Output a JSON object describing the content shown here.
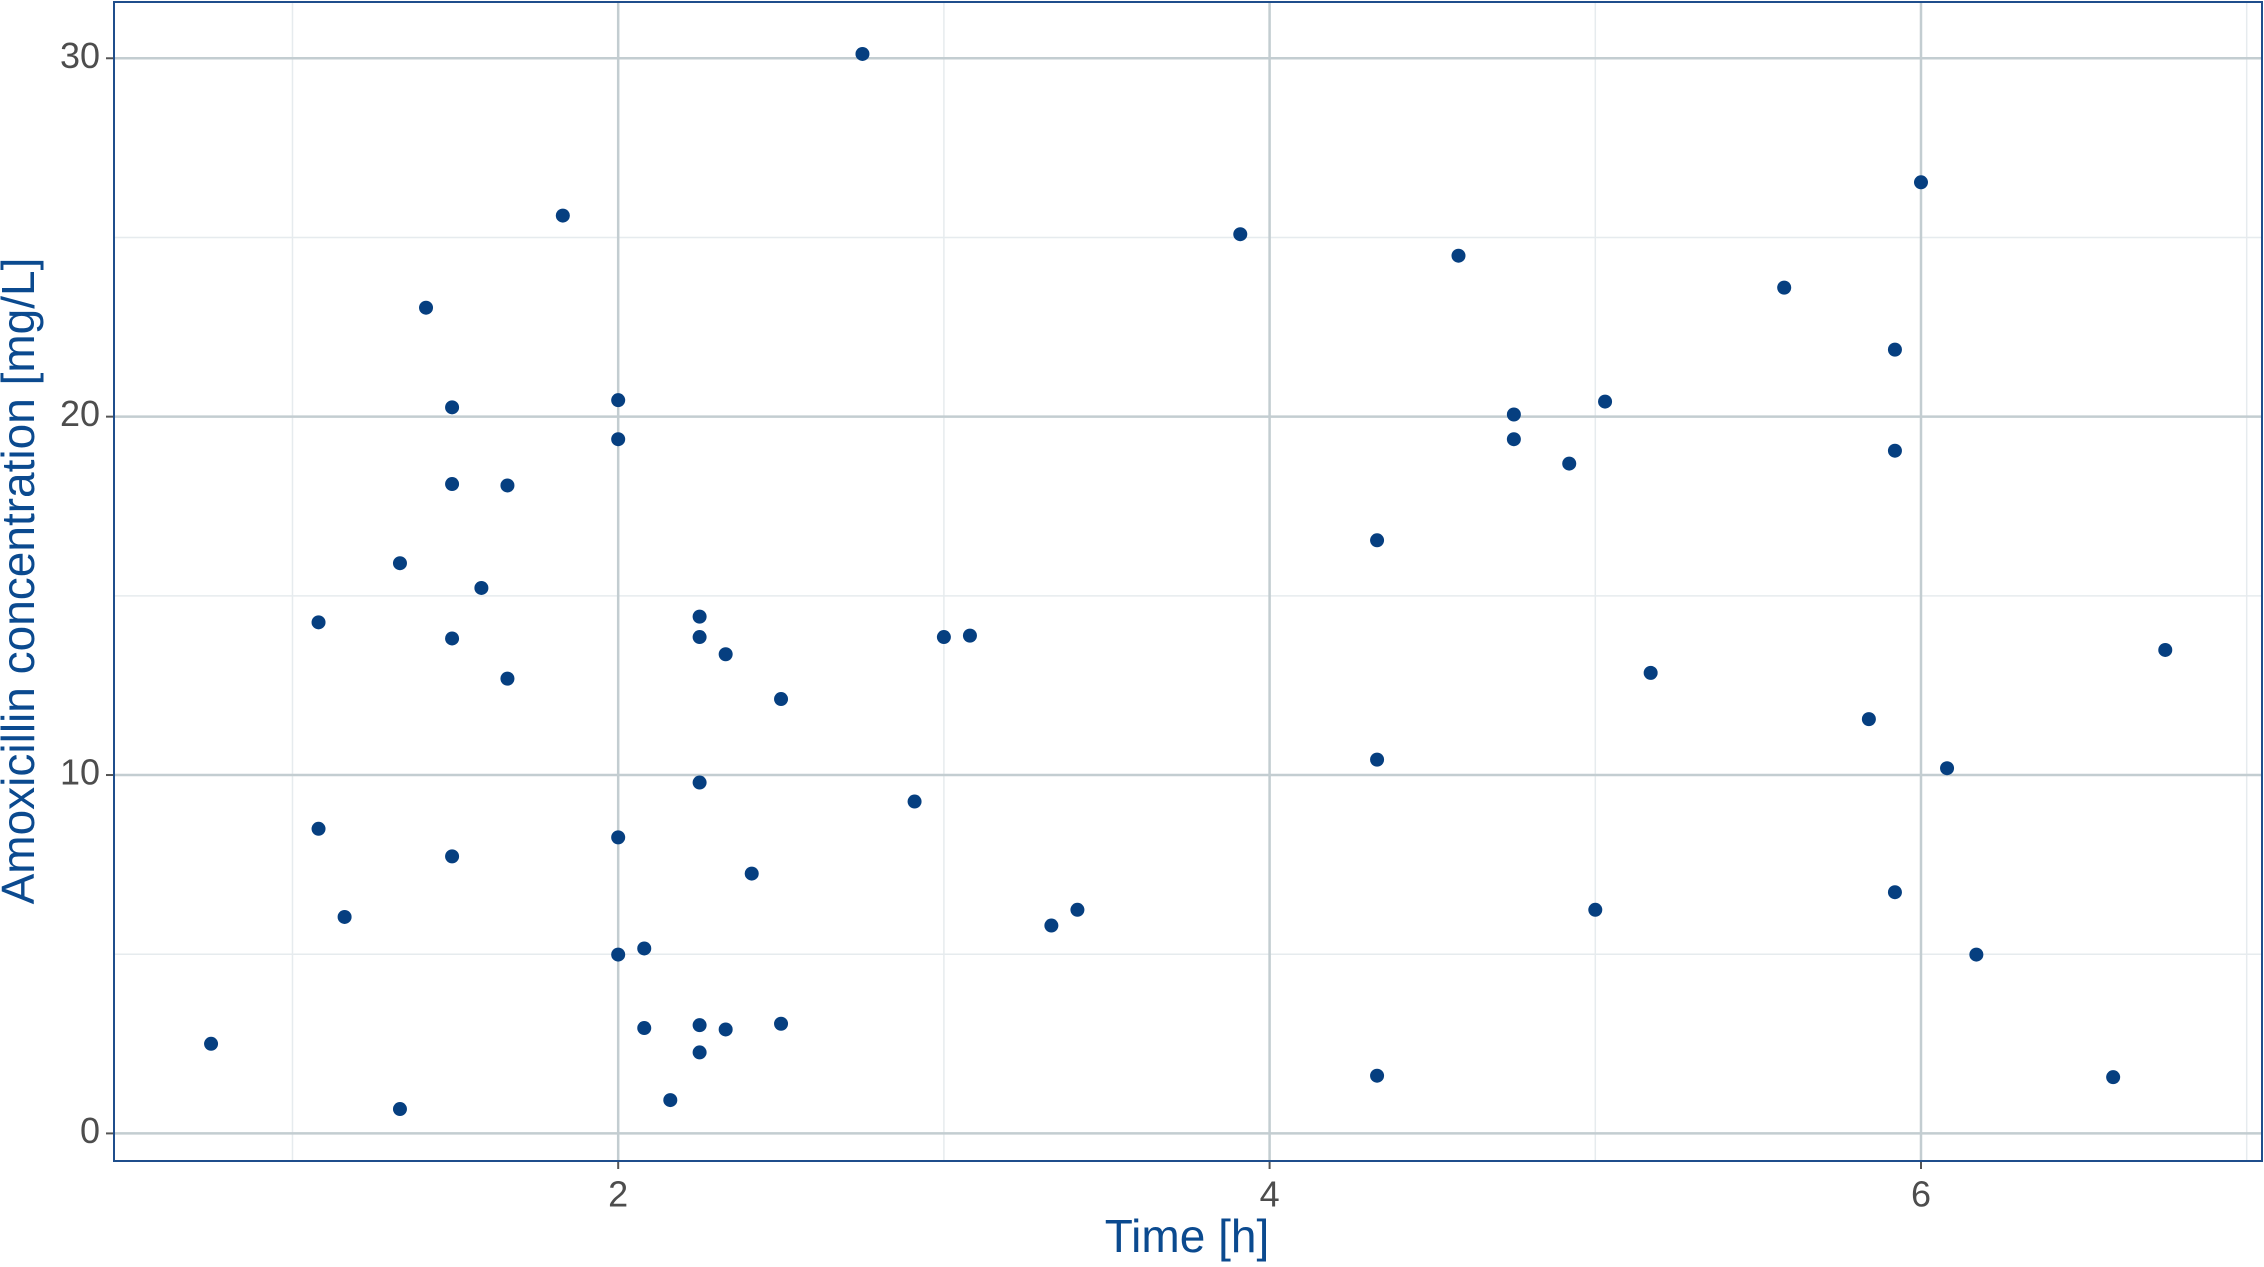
{
  "chart_data": {
    "type": "scatter",
    "x_label": "Time [h]",
    "y_label": "Amoxicillin concentration [mg/L]",
    "color": "#063f80",
    "grid": true,
    "xlim": [
      0.452,
      7.047
    ],
    "ylim": [
      -0.77,
      31.57
    ],
    "xticks": [
      2,
      4,
      6
    ],
    "yticks": [
      0,
      10,
      20,
      30
    ],
    "minor_xticks": [
      1,
      3,
      5,
      7
    ],
    "minor_yticks": [
      5,
      15,
      25
    ],
    "x": [
      0.75,
      1.08,
      1.08,
      1.16,
      1.33,
      1.33,
      1.41,
      1.49,
      1.49,
      1.49,
      1.49,
      1.58,
      1.66,
      1.66,
      1.83,
      2.0,
      2.0,
      2.0,
      2.0,
      2.08,
      2.08,
      2.16,
      2.25,
      2.25,
      2.25,
      2.25,
      2.25,
      2.33,
      2.33,
      2.41,
      2.5,
      2.5,
      2.75,
      2.91,
      3.0,
      3.08,
      3.33,
      3.41,
      3.91,
      4.33,
      4.33,
      4.33,
      4.58,
      4.75,
      4.75,
      4.92,
      5.0,
      5.03,
      5.17,
      5.58,
      5.84,
      5.92,
      5.92,
      5.92,
      6.0,
      6.08,
      6.17,
      6.59,
      6.75
    ],
    "values": [
      2.5,
      14.26,
      8.5,
      6.04,
      15.91,
      0.68,
      23.04,
      20.26,
      18.12,
      13.81,
      7.73,
      15.22,
      18.08,
      12.69,
      25.61,
      20.46,
      19.37,
      8.26,
      4.99,
      5.16,
      2.94,
      0.93,
      14.42,
      13.85,
      9.79,
      3.02,
      2.26,
      13.37,
      2.9,
      7.25,
      12.12,
      3.06,
      30.12,
      9.26,
      13.85,
      13.89,
      5.8,
      6.24,
      25.09,
      16.55,
      10.43,
      1.61,
      24.49,
      20.06,
      19.37,
      18.69,
      6.24,
      20.42,
      12.85,
      23.6,
      11.56,
      21.87,
      19.05,
      6.73,
      26.54,
      10.19,
      4.99,
      1.57,
      13.49
    ]
  }
}
